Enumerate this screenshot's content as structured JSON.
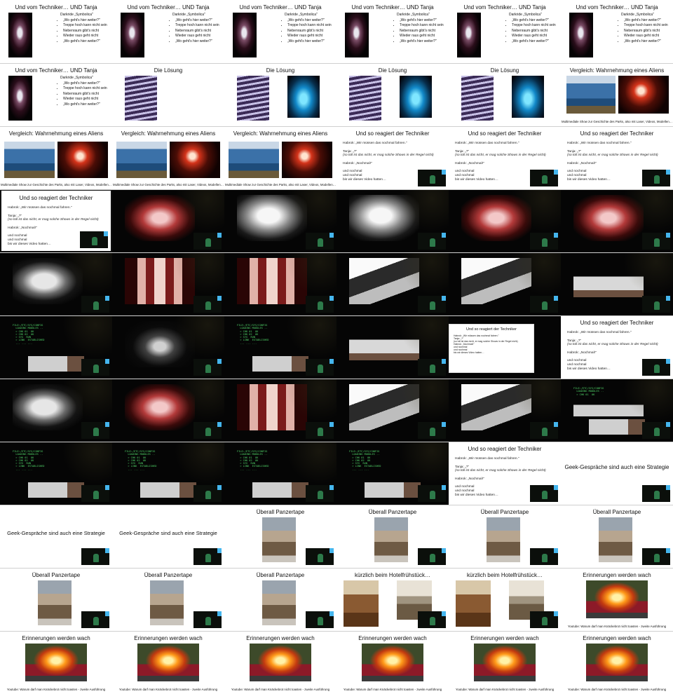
{
  "sheet": {
    "columns": 6,
    "rows": 11
  },
  "colors": {
    "slide_bg": "#ffffff",
    "video_bg": "#050505",
    "terminal_green": "#52d86a",
    "webcam_accent": "#45b6ee"
  },
  "text": {
    "t1": "Und vom Techniker… UND Tanja",
    "t1_label": "Darkride „Symbolica\"",
    "t1_bullets": [
      "„Wo geht's hier weiter?\"",
      "Treppe hoch kann nicht sein",
      "Nebenraum gibt's nicht",
      "Wieder raus geht nicht",
      "„Wo geht's hier weiter?\""
    ],
    "t2": "Die Lösung",
    "t3": "Vergleich: Wahrnehmung eines Aliens",
    "t3_caption": "Multimediale Show zur Geschichte des Parks, also mit Laser, Videos, Modellen…",
    "t4": "Und so reagiert der Techniker",
    "t4_lines": [
      "Habrok: „Wir müssen das nochmal fahren.\"",
      "Tanja: „?\"",
      "(so toll ist das nicht, er mag solche Shows in der Regel nicht)",
      "Habrok: „Nochmal!\"",
      "und nochmal",
      "und nochmal",
      "bis wir dieses Video hatten…"
    ],
    "t5": "Geek-Gespräche sind auch eine Strategie",
    "t6": "Überall Panzertape",
    "t7": "kürzlich beim Hotelfrühstück…",
    "t8": "Erinnerungen werden wach",
    "t8_caption": "Youtube: Warum darf man Knäckebrot nicht toasten - zweite Ausführung"
  },
  "terminal": [
    "FILE:/ETC/SYS/CONFIG",
    "  LOADING MODULES ..",
    "  > CHK 01  OK",
    "  > CHK 02  OK",
    "  > SYS  RUN",
    "  > LINK  ESTABLISHED",
    "  ... ... ..."
  ],
  "slides": [
    {
      "kind": "symbolica"
    },
    {
      "kind": "symbolica"
    },
    {
      "kind": "symbolica"
    },
    {
      "kind": "symbolica"
    },
    {
      "kind": "symbolica"
    },
    {
      "kind": "symbolica"
    },
    {
      "kind": "symbolica"
    },
    {
      "kind": "loesung1"
    },
    {
      "kind": "loesung2"
    },
    {
      "kind": "loesung2"
    },
    {
      "kind": "loesung2"
    },
    {
      "kind": "alien"
    },
    {
      "kind": "alien2"
    },
    {
      "kind": "alien2"
    },
    {
      "kind": "alien2"
    },
    {
      "kind": "techniker"
    },
    {
      "kind": "techniker"
    },
    {
      "kind": "techniker"
    },
    {
      "kind": "techniker",
      "frame": true
    },
    {
      "kind": "video",
      "v": "red"
    },
    {
      "kind": "video",
      "v": "white"
    },
    {
      "kind": "video",
      "v": "white"
    },
    {
      "kind": "video",
      "v": "red"
    },
    {
      "kind": "video",
      "v": "red"
    },
    {
      "kind": "video",
      "v": "ring"
    },
    {
      "kind": "video",
      "v": "window"
    },
    {
      "kind": "video",
      "v": "window"
    },
    {
      "kind": "video",
      "v": "people"
    },
    {
      "kind": "video",
      "v": "people"
    },
    {
      "kind": "video",
      "v": "hand"
    },
    {
      "kind": "video",
      "v": "term"
    },
    {
      "kind": "video",
      "v": "ringdark"
    },
    {
      "kind": "video",
      "v": "term"
    },
    {
      "kind": "video",
      "v": "hand"
    },
    {
      "kind": "techniker",
      "small": true
    },
    {
      "kind": "techniker"
    },
    {
      "kind": "video",
      "v": "ring"
    },
    {
      "kind": "video",
      "v": "red"
    },
    {
      "kind": "video",
      "v": "window"
    },
    {
      "kind": "video",
      "v": "people"
    },
    {
      "kind": "video",
      "v": "people"
    },
    {
      "kind": "video",
      "v": "termhand"
    },
    {
      "kind": "video",
      "v": "term"
    },
    {
      "kind": "video",
      "v": "term"
    },
    {
      "kind": "video",
      "v": "term"
    },
    {
      "kind": "video",
      "v": "term"
    },
    {
      "kind": "techniker"
    },
    {
      "kind": "geek"
    },
    {
      "kind": "geek",
      "lower": true
    },
    {
      "kind": "geek",
      "lower": true
    },
    {
      "kind": "tape"
    },
    {
      "kind": "tape"
    },
    {
      "kind": "tape"
    },
    {
      "kind": "tape"
    },
    {
      "kind": "tape"
    },
    {
      "kind": "tape"
    },
    {
      "kind": "tape"
    },
    {
      "kind": "hotel"
    },
    {
      "kind": "hotel"
    },
    {
      "kind": "fire",
      "nocap": true
    },
    {
      "kind": "fire"
    },
    {
      "kind": "fire"
    },
    {
      "kind": "fire"
    },
    {
      "kind": "fire"
    },
    {
      "kind": "fire"
    },
    {
      "kind": "fire"
    }
  ]
}
